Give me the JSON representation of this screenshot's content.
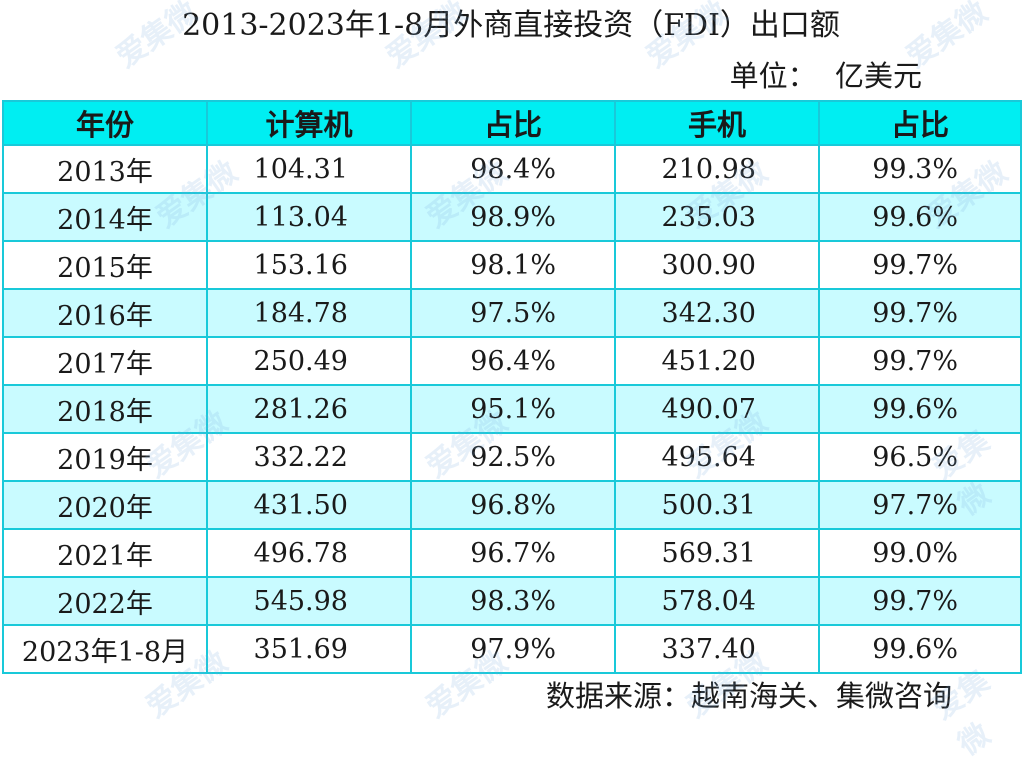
{
  "title": "2013-2023年1-8月外商直接投资（FDI）出口额",
  "unit": "单位：  亿美元",
  "headers": [
    "年份",
    "计算机",
    "占比",
    "手机",
    "占比"
  ],
  "rows": [
    {
      "year": "2013年",
      "computer": "104.31",
      "computer_share": "98.4%",
      "phone": "210.98",
      "phone_share": "99.3%"
    },
    {
      "year": "2014年",
      "computer": "113.04",
      "computer_share": "98.9%",
      "phone": "235.03",
      "phone_share": "99.6%"
    },
    {
      "year": "2015年",
      "computer": "153.16",
      "computer_share": "98.1%",
      "phone": "300.90",
      "phone_share": "99.7%"
    },
    {
      "year": "2016年",
      "computer": "184.78",
      "computer_share": "97.5%",
      "phone": "342.30",
      "phone_share": "99.7%"
    },
    {
      "year": "2017年",
      "computer": "250.49",
      "computer_share": "96.4%",
      "phone": "451.20",
      "phone_share": "99.7%"
    },
    {
      "year": "2018年",
      "computer": "281.26",
      "computer_share": "95.1%",
      "phone": "490.07",
      "phone_share": "99.6%"
    },
    {
      "year": "2019年",
      "computer": "332.22",
      "computer_share": "92.5%",
      "phone": "495.64",
      "phone_share": "96.5%"
    },
    {
      "year": "2020年",
      "computer": "431.50",
      "computer_share": "96.8%",
      "phone": "500.31",
      "phone_share": "97.7%"
    },
    {
      "year": "2021年",
      "computer": "496.78",
      "computer_share": "96.7%",
      "phone": "569.31",
      "phone_share": "99.0%"
    },
    {
      "year": "2022年",
      "computer": "545.98",
      "computer_share": "98.3%",
      "phone": "578.04",
      "phone_share": "99.7%"
    },
    {
      "year": "2023年1-8月",
      "computer": "351.69",
      "computer_share": "97.9%",
      "phone": "337.40",
      "phone_share": "99.6%"
    }
  ],
  "source": "数据来源：越南海关、集微咨询",
  "watermark": "爱集微",
  "colors": {
    "header_bg": "#00eef2",
    "stripe_bg": "#c9fbff",
    "border": "#19c9d9"
  }
}
